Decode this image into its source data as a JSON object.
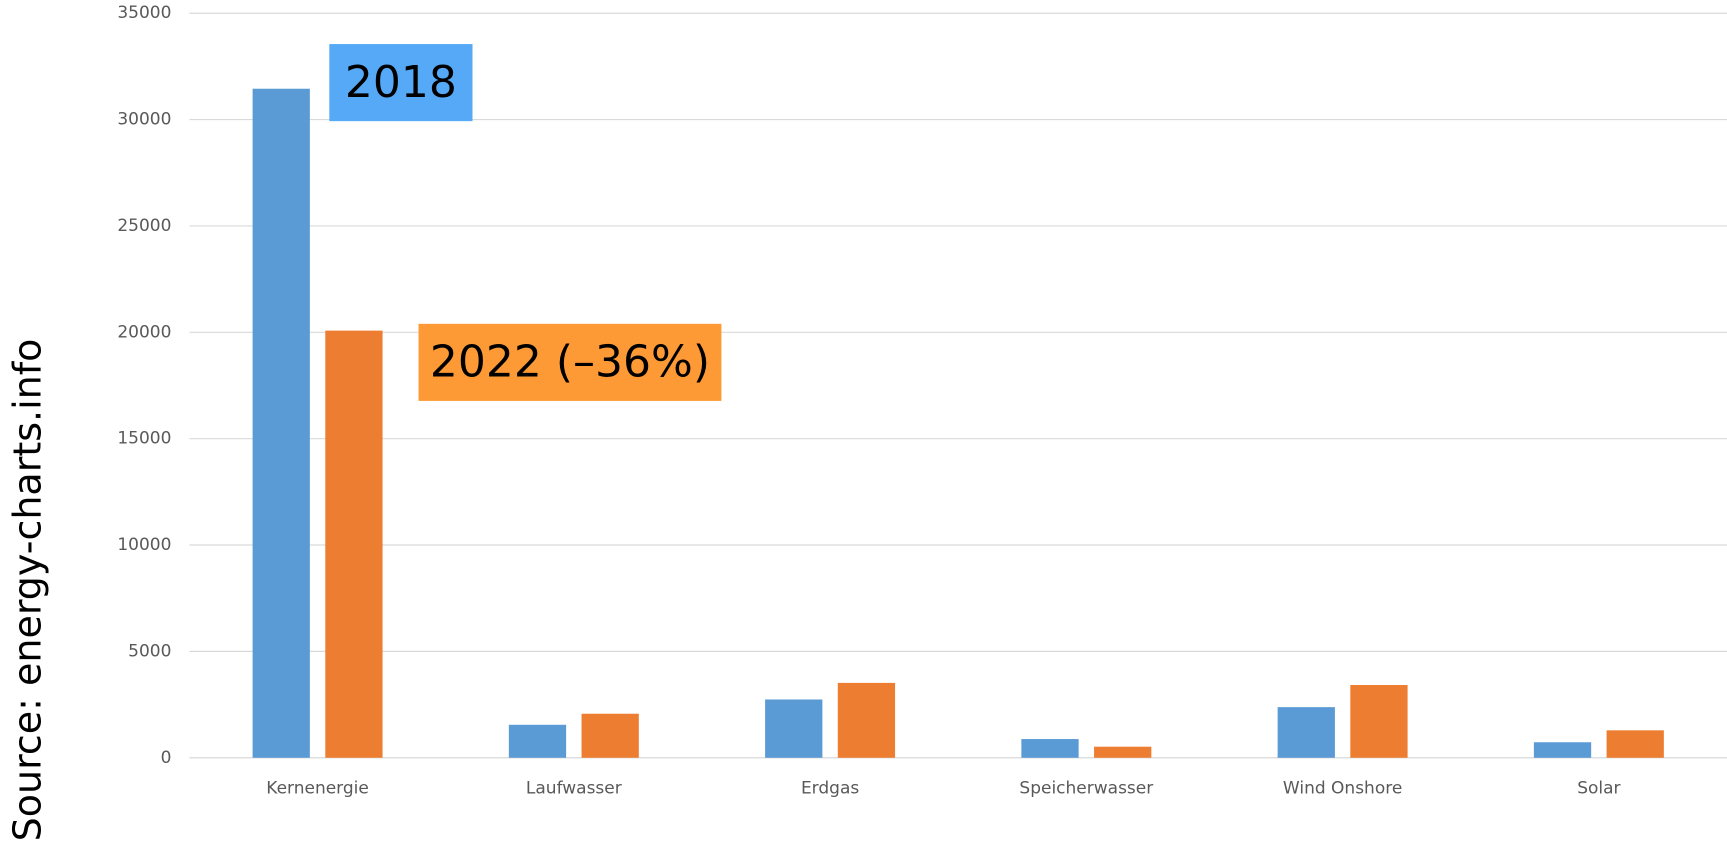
{
  "chart_data": {
    "type": "bar",
    "source": "Source: energy-charts.info",
    "categories": [
      "Kernenergie",
      "Laufwasser",
      "Erdgas",
      "Speicherwasser",
      "Wind Onshore",
      "Solar"
    ],
    "series": [
      {
        "name": "2018",
        "color": "#5b9bd5",
        "values": [
          31450,
          1550,
          2740,
          880,
          2380,
          730
        ]
      },
      {
        "name": "2022 (–36%)",
        "color": "#ed7d31",
        "values": [
          20080,
          2070,
          3520,
          520,
          3420,
          1290
        ]
      }
    ],
    "ylim": [
      0,
      35000
    ],
    "yticks": [
      0,
      5000,
      10000,
      15000,
      20000,
      25000,
      30000,
      35000
    ],
    "grid": true
  }
}
